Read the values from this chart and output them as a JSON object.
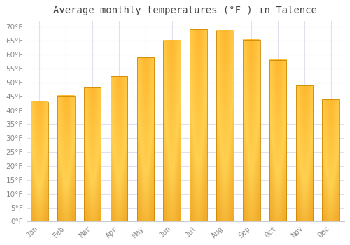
{
  "title": "Average monthly temperatures (°F ) in Talence",
  "months": [
    "Jan",
    "Feb",
    "Mar",
    "Apr",
    "May",
    "Jun",
    "Jul",
    "Aug",
    "Sep",
    "Oct",
    "Nov",
    "Dec"
  ],
  "values": [
    43.2,
    45.1,
    48.2,
    52.3,
    59.0,
    65.0,
    69.0,
    68.7,
    65.3,
    58.0,
    49.0,
    44.0
  ],
  "bar_color_dark": "#F0A020",
  "bar_color_light": "#FFD060",
  "background_color": "#FFFFFF",
  "grid_color": "#E0E0EE",
  "title_color": "#444444",
  "tick_color": "#888888",
  "ylim": [
    0,
    72
  ],
  "ytick_step": 5,
  "title_fontsize": 10,
  "tick_fontsize": 7.5,
  "bar_width": 0.65
}
